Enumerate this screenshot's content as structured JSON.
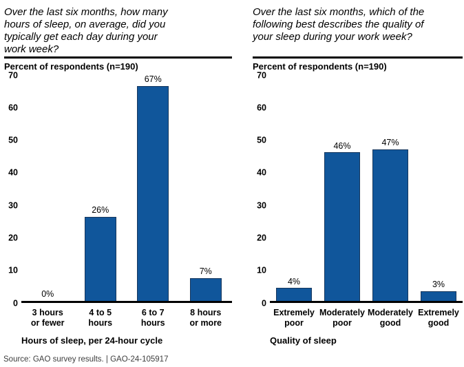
{
  "page": {
    "source_note": "Source: GAO survey results.  |  GAO-24-105917"
  },
  "colors": {
    "bar_fill": "#10569B",
    "bar_border": "#16365C",
    "axis_line": "#000000",
    "source_text": "#3d3d3d"
  },
  "chart_data": [
    {
      "type": "bar",
      "title": "Over the last six months, how many\nhours of sleep, on average, did you\ntypically get each day during your\nwork week?",
      "subtitle": "Percent of respondents (n=190)",
      "categories": [
        "3 hours\nor fewer",
        "4 to 5\nhours",
        "6 to 7\nhours",
        "8 hours\nor more"
      ],
      "values": [
        0,
        26,
        67,
        7
      ],
      "value_labels": [
        "0%",
        "26%",
        "67%",
        "7%"
      ],
      "xlabel": "Hours of sleep, per 24-hour cycle",
      "ylabel": "Percent of respondents (n=190)",
      "ylim": [
        0,
        70
      ],
      "yticks": [
        0,
        10,
        20,
        30,
        40,
        50,
        60,
        70
      ],
      "grid": false,
      "legend": false
    },
    {
      "type": "bar",
      "title": "Over the last six months, which of the\nfollowing best describes the quality of\nyour sleep during your work week?",
      "subtitle": "Percent of respondents (n=190)",
      "categories": [
        "Extremely\npoor",
        "Moderately\npoor",
        "Moderately\ngood",
        "Extremely\ngood"
      ],
      "values": [
        4,
        46,
        47,
        3
      ],
      "value_labels": [
        "4%",
        "46%",
        "47%",
        "3%"
      ],
      "xlabel": "Quality of sleep",
      "ylabel": "Percent of respondents (n=190)",
      "ylim": [
        0,
        70
      ],
      "yticks": [
        0,
        10,
        20,
        30,
        40,
        50,
        60,
        70
      ],
      "grid": false,
      "legend": false
    }
  ]
}
